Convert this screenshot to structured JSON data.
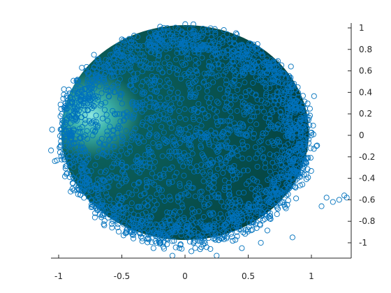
{
  "chart_data": {
    "type": "scatter",
    "title": "",
    "xlabel": "",
    "ylabel": "",
    "xlim": [
      -1.1,
      1.3
    ],
    "ylim": [
      -1.15,
      1.05
    ],
    "x_ticks": [
      -1,
      -0.5,
      0,
      0.5,
      1
    ],
    "x_tick_labels": [
      "-1",
      "-0.5",
      "0",
      "0.5",
      "1"
    ],
    "y_ticks": [
      -1,
      -0.8,
      -0.6,
      -0.4,
      -0.2,
      0,
      0.2,
      0.4,
      0.6,
      0.8,
      1
    ],
    "y_tick_labels": [
      "-1",
      "-0.8",
      "-0.6",
      "-0.4",
      "-0.2",
      "0",
      "0.2",
      "0.4",
      "0.6",
      "0.8",
      "1"
    ],
    "grid": false,
    "legend": "none",
    "surface": {
      "shape": "sphere",
      "fill_color": "#04403f",
      "highlight_color": "#8fe8e0",
      "center": [
        0.0,
        0.0
      ],
      "radius": 1.0
    },
    "series": [
      {
        "marker": "circle-open",
        "color": "#0072bd",
        "distribution": "dense points on and around unit sphere",
        "outliers": [
          {
            "x": -1.06,
            "y": -0.14
          },
          {
            "x": -1.03,
            "y": -0.24
          },
          {
            "x": 1.04,
            "y": -0.1
          },
          {
            "x": 1.12,
            "y": -0.58
          },
          {
            "x": 1.17,
            "y": -0.62
          },
          {
            "x": 1.22,
            "y": -0.6
          },
          {
            "x": 1.26,
            "y": -0.56
          },
          {
            "x": 1.28,
            "y": -0.58
          },
          {
            "x": 1.08,
            "y": -0.66
          },
          {
            "x": 0.85,
            "y": -0.95
          },
          {
            "x": 0.6,
            "y": -1.0
          },
          {
            "x": 0.45,
            "y": -1.05
          },
          {
            "x": 0.25,
            "y": -1.12
          },
          {
            "x": 0.05,
            "y": -1.08
          },
          {
            "x": -0.1,
            "y": -1.12
          },
          {
            "x": -0.25,
            "y": -1.05
          }
        ]
      }
    ]
  }
}
